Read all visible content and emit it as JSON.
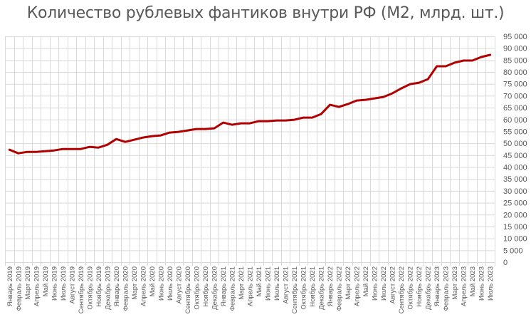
{
  "chart_data": {
    "type": "line",
    "title": "Количество рублевых фантиков внутри РФ (М2, млрд. шт.)",
    "xlabel": "",
    "ylabel": "",
    "ylim": [
      0,
      95000
    ],
    "yticks": [
      0,
      5000,
      10000,
      15000,
      20000,
      25000,
      30000,
      35000,
      40000,
      45000,
      50000,
      55000,
      60000,
      65000,
      70000,
      75000,
      80000,
      85000,
      90000,
      95000
    ],
    "ytick_labels": [
      "0",
      "5 000",
      "10 000",
      "15 000",
      "20 000",
      "25 000",
      "30 000",
      "35 000",
      "40 000",
      "45 000",
      "50 000",
      "55 000",
      "60 000",
      "65 000",
      "70 000",
      "75 000",
      "80 000",
      "85 000",
      "90 000",
      "95 000"
    ],
    "y_axis_position": "right",
    "grid": true,
    "legend": null,
    "line_color": "#B00000",
    "categories": [
      "Январь 2019",
      "Февраль 2019",
      "Март 2019",
      "Апрель 2019",
      "Май 2019",
      "Июнь 2019",
      "Июль 2019",
      "Август 2019",
      "Сентябрь 2019",
      "Октябрь 2019",
      "Ноябрь 2019",
      "Декабрь 2019",
      "Январь 2020",
      "Февраль 2020",
      "Март 2020",
      "Апрель 2020",
      "Май 2020",
      "Июнь 2020",
      "Июль 2020",
      "Август 2020",
      "Сентябрь 2020",
      "Октябрь 2020",
      "Ноябрь 2020",
      "Декабрь 2020",
      "Январь 2021",
      "Февраль 2021",
      "Март 2021",
      "Апрель 2021",
      "Май 2021",
      "Июнь 2021",
      "Июль 2021",
      "Август 2021",
      "Сентябрь 2021",
      "Октябрь 2021",
      "Ноябрь 2021",
      "Декабрь 2021",
      "Январь 2022",
      "Февраль 2022",
      "Март 2022",
      "Апрель 2022",
      "Май 2022",
      "Июнь 2022",
      "Июль 2022",
      "Август 2022",
      "Сентябрь 2022",
      "Октябрь 2022",
      "Ноябрь 2022",
      "Декабрь 2022",
      "Январь 2023",
      "Февраль 2023",
      "Март 2023",
      "Апрель 2023",
      "Май 2023",
      "Июнь 2023",
      "Июль 2023"
    ],
    "series": [
      {
        "name": "М2",
        "values": [
          47300,
          45800,
          46400,
          46400,
          46700,
          47000,
          47600,
          47600,
          47600,
          48500,
          48200,
          49400,
          51800,
          50600,
          51500,
          52400,
          53000,
          53300,
          54500,
          54800,
          55400,
          56000,
          56000,
          56300,
          58700,
          57800,
          58400,
          58400,
          59300,
          59300,
          59600,
          59600,
          59900,
          60800,
          60800,
          62300,
          66200,
          65300,
          66500,
          68000,
          68300,
          68900,
          69500,
          71000,
          73100,
          74900,
          75500,
          77000,
          82400,
          82400,
          83900,
          84800,
          84800,
          86300,
          87200
        ]
      }
    ]
  }
}
